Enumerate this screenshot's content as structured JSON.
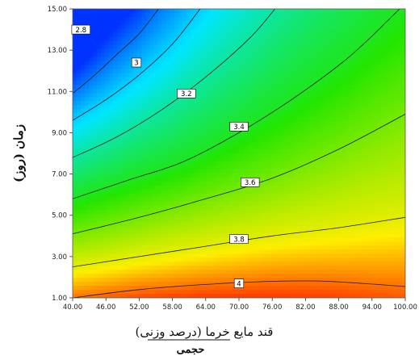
{
  "chart_data": {
    "type": "contour",
    "title": "",
    "xlabel": "قند مایع خرما (درصد وزنی)",
    "xlabel_sub": "حجمی",
    "ylabel": "زمان (روز)",
    "xlim": [
      40,
      100
    ],
    "ylim": [
      1,
      15
    ],
    "x_ticks": [
      "40.00",
      "46.00",
      "52.00",
      "58.00",
      "64.00",
      "70.00",
      "76.00",
      "82.00",
      "88.00",
      "94.00",
      "100.00"
    ],
    "y_ticks": [
      "1.00",
      "3.00",
      "5.00",
      "7.00",
      "9.00",
      "11.00",
      "13.00",
      "15.00"
    ],
    "color_scale": {
      "low": "#0033ff",
      "mid_low": "#00e6ff",
      "mid": "#22e600",
      "mid_high": "#ffee00",
      "high": "#ff2200"
    },
    "contours": [
      {
        "level": "2.8",
        "label_at": [
          41.5,
          14.0
        ],
        "points": [
          [
            40.0,
            10.9
          ],
          [
            44.0,
            11.8
          ],
          [
            48.0,
            12.8
          ],
          [
            52.0,
            13.8
          ],
          [
            55.5,
            15.0
          ]
        ]
      },
      {
        "level": "3",
        "label_at": [
          51.5,
          12.4
        ],
        "points": [
          [
            40.0,
            9.6
          ],
          [
            46.0,
            10.6
          ],
          [
            52.0,
            11.8
          ],
          [
            58.0,
            13.3
          ],
          [
            63.0,
            15.0
          ]
        ]
      },
      {
        "level": "3.2",
        "label_at": [
          60.5,
          10.9
        ],
        "points": [
          [
            40.0,
            7.8
          ],
          [
            48.0,
            8.8
          ],
          [
            56.0,
            10.1
          ],
          [
            64.0,
            11.7
          ],
          [
            72.0,
            13.6
          ],
          [
            76.5,
            15.0
          ]
        ]
      },
      {
        "level": "3.4",
        "label_at": [
          70.0,
          9.3
        ],
        "points": [
          [
            40.0,
            5.8
          ],
          [
            50.0,
            6.7
          ],
          [
            60.0,
            7.6
          ],
          [
            70.0,
            9.0
          ],
          [
            80.0,
            10.7
          ],
          [
            90.0,
            12.7
          ],
          [
            99.0,
            15.0
          ]
        ]
      },
      {
        "level": "3.6",
        "label_at": [
          72.0,
          6.6
        ],
        "points": [
          [
            40.0,
            4.1
          ],
          [
            52.0,
            4.9
          ],
          [
            64.0,
            5.8
          ],
          [
            76.0,
            6.8
          ],
          [
            88.0,
            8.2
          ],
          [
            100.0,
            9.9
          ]
        ]
      },
      {
        "level": "3.8",
        "label_at": [
          70.0,
          3.85
        ],
        "points": [
          [
            40.0,
            2.5
          ],
          [
            52.0,
            3.0
          ],
          [
            64.0,
            3.5
          ],
          [
            76.0,
            4.0
          ],
          [
            88.0,
            4.4
          ],
          [
            100.0,
            4.9
          ]
        ]
      },
      {
        "level": "4",
        "label_at": [
          70.0,
          1.7
        ],
        "points": [
          [
            40.0,
            1.0
          ],
          [
            52.0,
            1.4
          ],
          [
            64.0,
            1.65
          ],
          [
            76.0,
            1.8
          ],
          [
            86.0,
            1.8
          ],
          [
            100.0,
            1.55
          ]
        ]
      }
    ]
  }
}
